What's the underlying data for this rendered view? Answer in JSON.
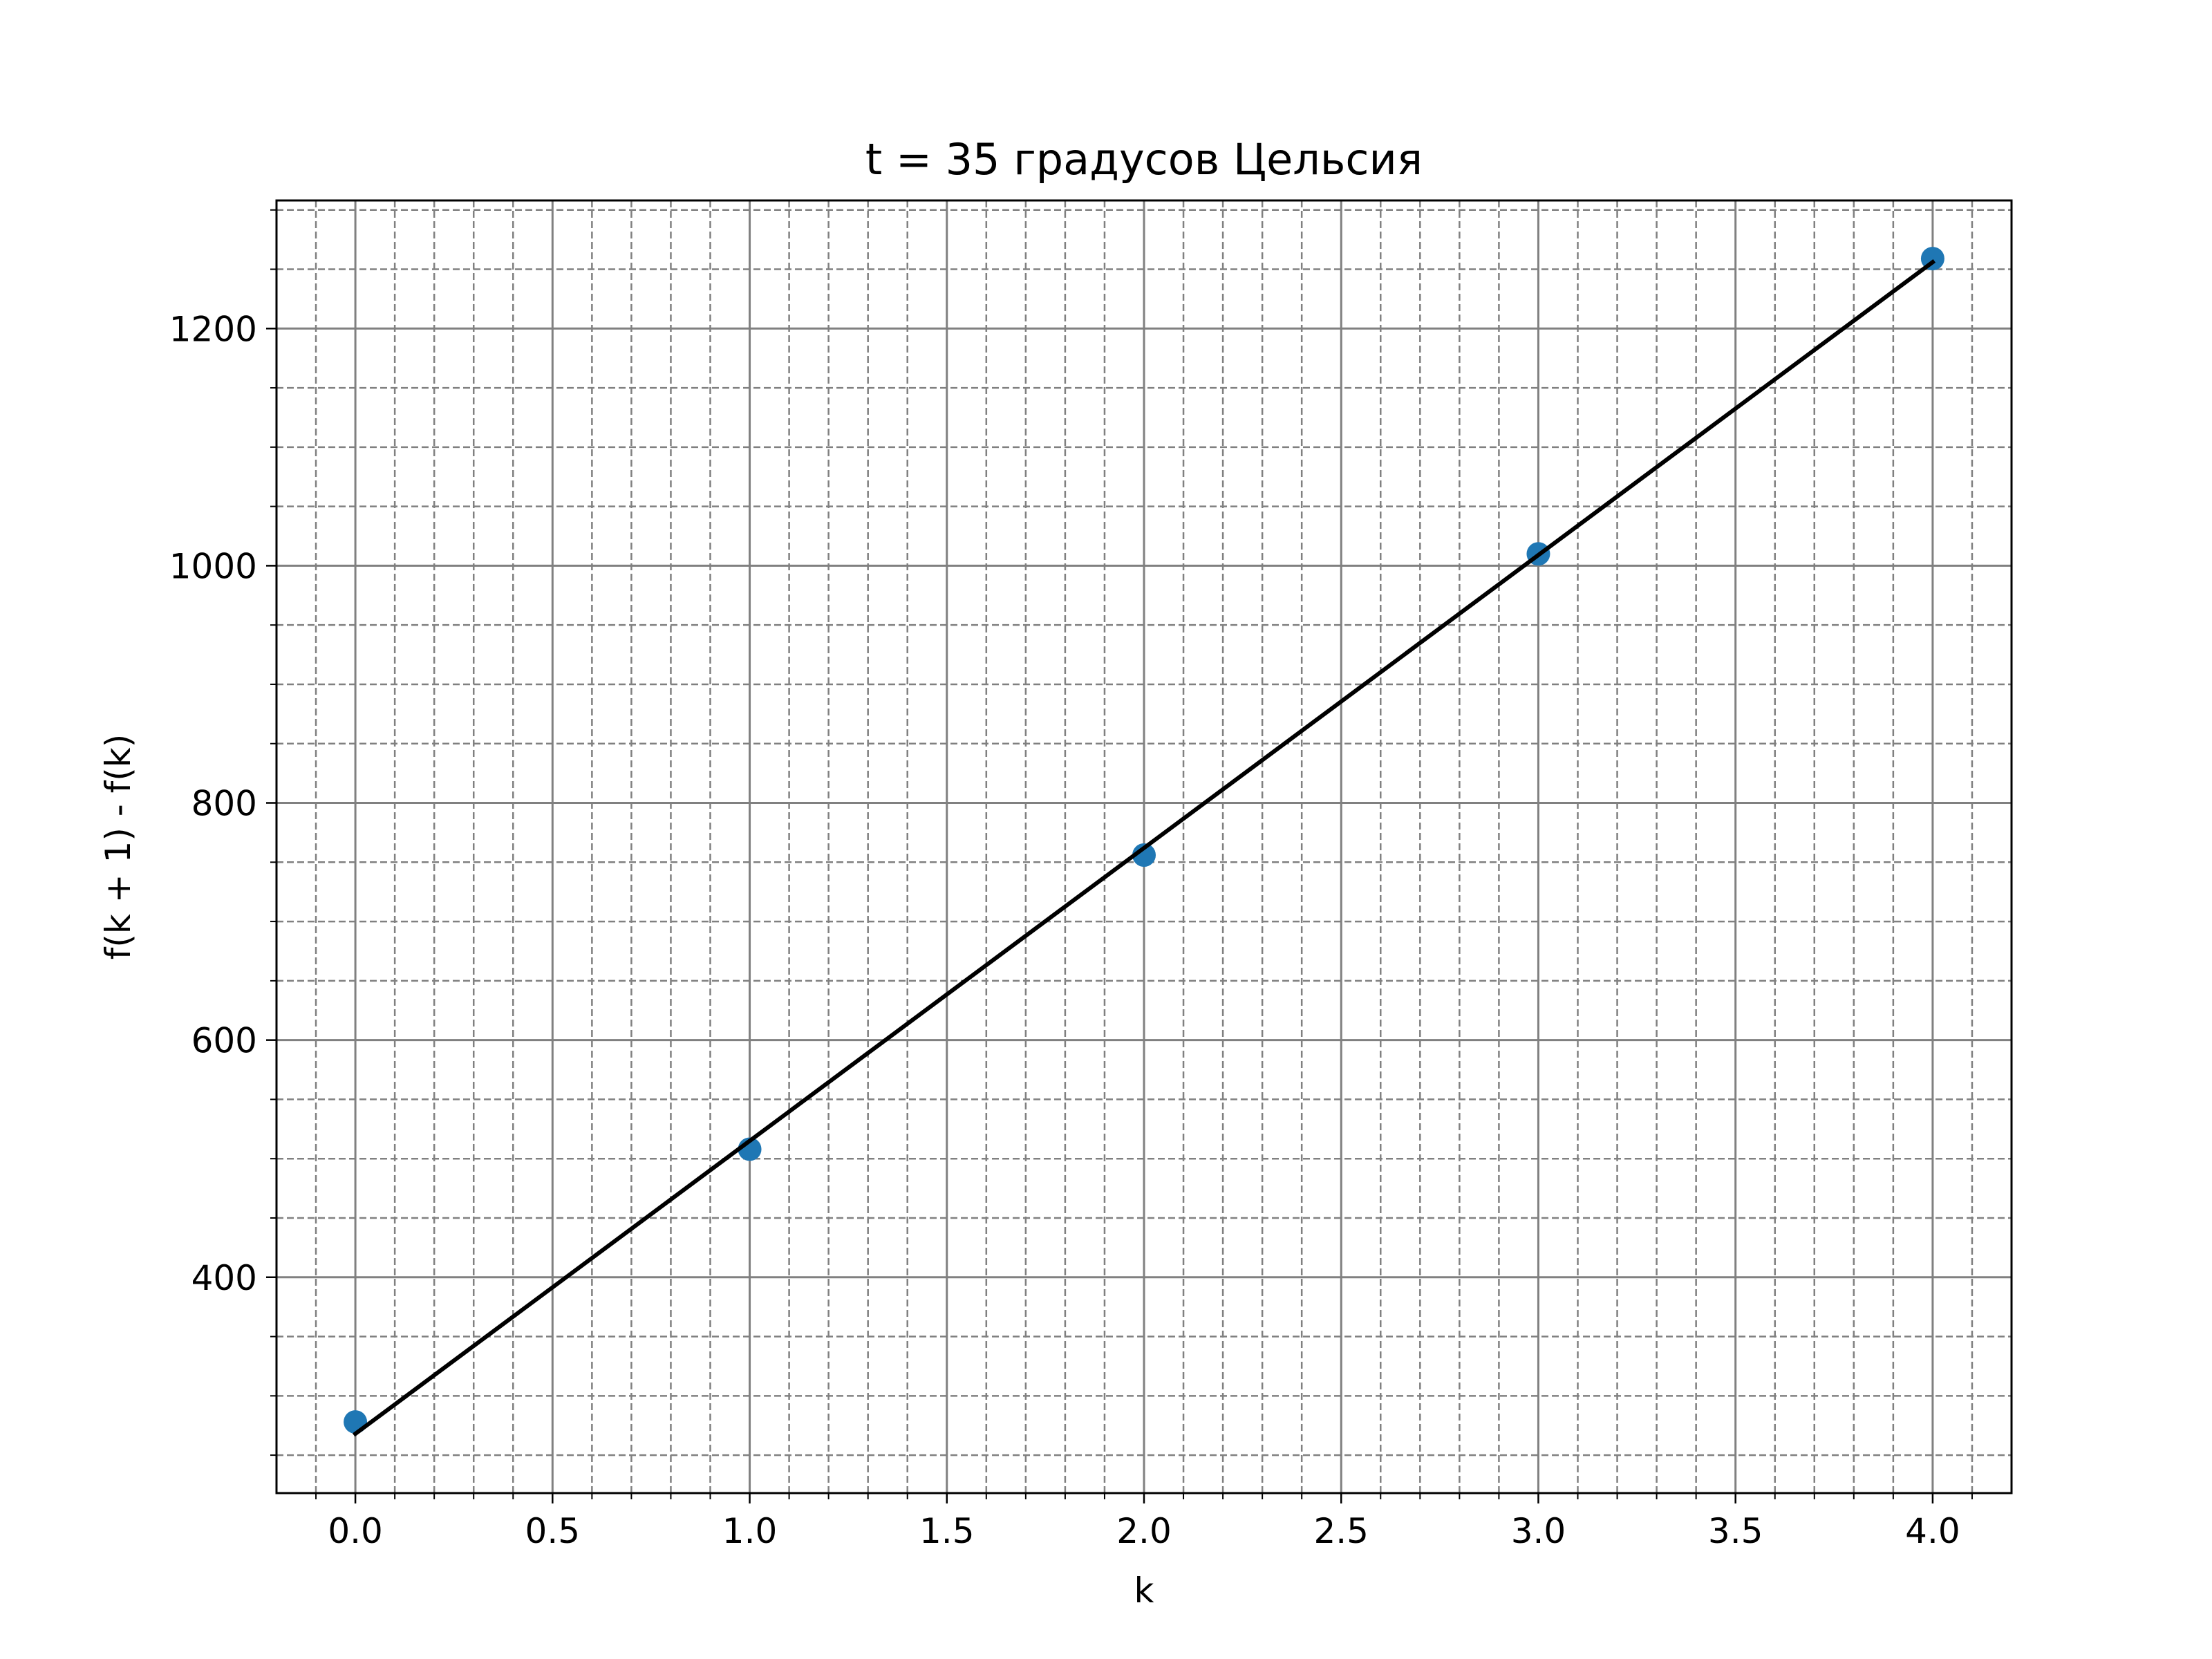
{
  "chart_data": {
    "type": "scatter",
    "title": "t = 35 градусов Цельсия",
    "xlabel": "k",
    "ylabel": "f(k + 1) - f(k)",
    "xlim": [
      -0.2,
      4.2
    ],
    "ylim": [
      218,
      1308
    ],
    "xticks": [
      {
        "value": 0.0,
        "label": "0.0"
      },
      {
        "value": 0.5,
        "label": "0.5"
      },
      {
        "value": 1.0,
        "label": "1.0"
      },
      {
        "value": 1.5,
        "label": "1.5"
      },
      {
        "value": 2.0,
        "label": "2.0"
      },
      {
        "value": 2.5,
        "label": "2.5"
      },
      {
        "value": 3.0,
        "label": "3.0"
      },
      {
        "value": 3.5,
        "label": "3.5"
      },
      {
        "value": 4.0,
        "label": "4.0"
      }
    ],
    "yticks": [
      {
        "value": 400,
        "label": "400"
      },
      {
        "value": 600,
        "label": "600"
      },
      {
        "value": 800,
        "label": "800"
      },
      {
        "value": 1000,
        "label": "1000"
      },
      {
        "value": 1200,
        "label": "1200"
      }
    ],
    "x_minor_step": 0.1,
    "y_minor_step": 50,
    "grid": {
      "major": true,
      "minor": true,
      "minor_style": "dashed"
    },
    "points": {
      "color": "#1f77b4",
      "x": [
        0,
        1,
        2,
        3,
        4
      ],
      "y": [
        278,
        508,
        756,
        1010,
        1259
      ]
    },
    "fit_line": {
      "color": "#000000",
      "x": [
        0,
        4
      ],
      "y": [
        268,
        1256
      ]
    }
  }
}
